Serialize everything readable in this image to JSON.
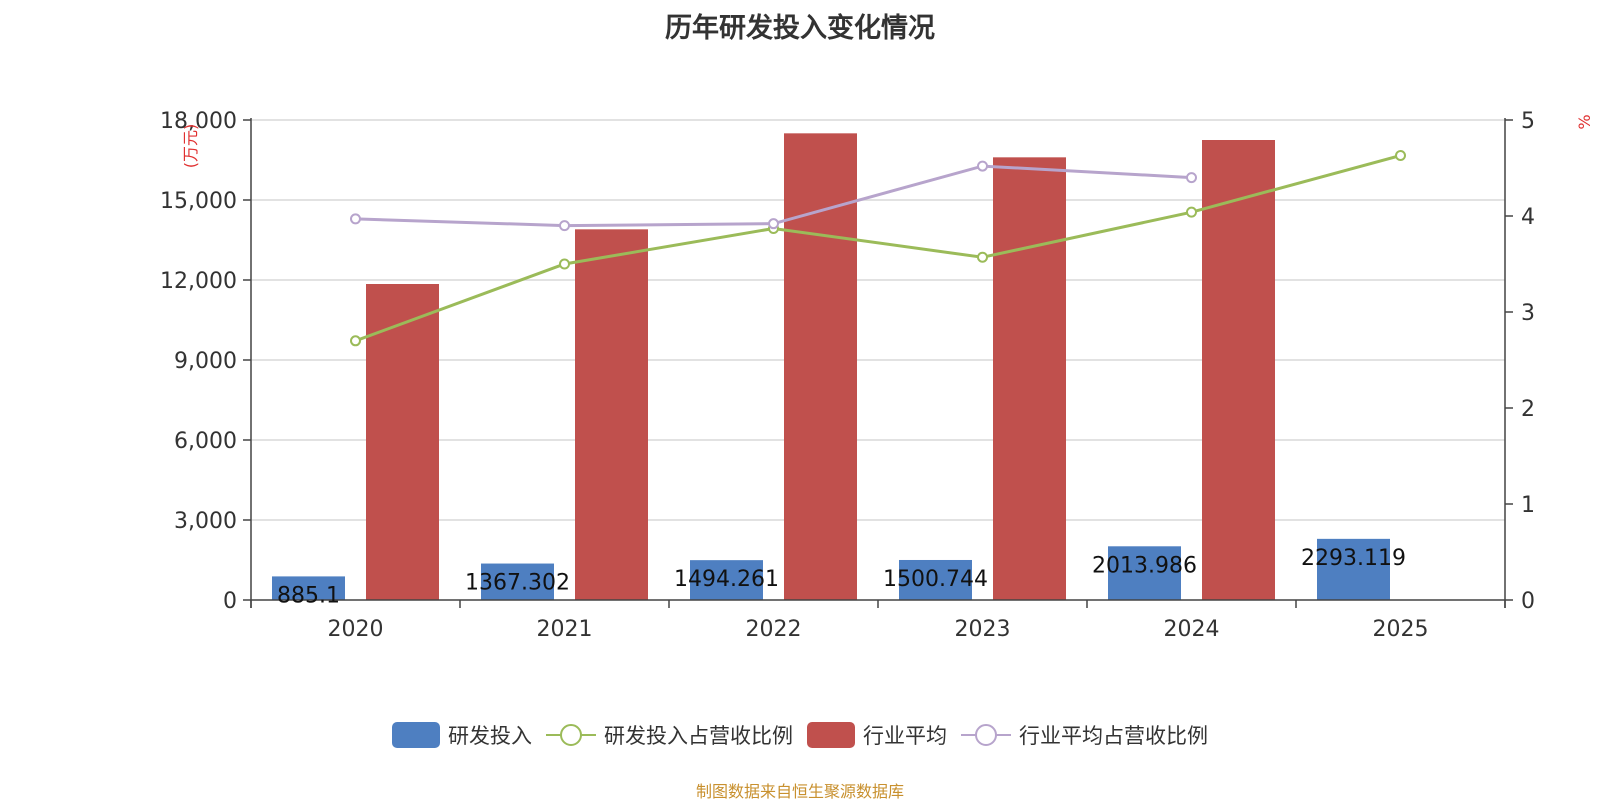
{
  "title": "历年研发投入变化情况",
  "footer": "制图数据来自恒生聚源数据库",
  "chart_data": {
    "type": "bar",
    "categories": [
      "2020",
      "2021",
      "2022",
      "2023",
      "2024",
      "2025"
    ],
    "y_left": {
      "label": "(万元)",
      "min": 0,
      "max": 18000,
      "ticks": [
        "0",
        "3,000",
        "6,000",
        "9,000",
        "12,000",
        "15,000",
        "18,000"
      ]
    },
    "y_right": {
      "label": "%",
      "min": 0,
      "max": 5,
      "ticks": [
        "0",
        "1",
        "2",
        "3",
        "4",
        "5"
      ]
    },
    "grid": true,
    "legend_position": "bottom",
    "series": [
      {
        "name": "研发投入",
        "type": "bar",
        "axis": "left",
        "color": "#4e7fc1",
        "values": [
          885.1,
          1367.302,
          1494.261,
          1500.744,
          2013.986,
          2293.119
        ],
        "labels": [
          "885.1",
          "1367.302",
          "1494.261",
          "1500.744",
          "2013.986",
          "2293.119"
        ]
      },
      {
        "name": "研发投入占营收比例",
        "type": "line",
        "axis": "right",
        "color": "#9bbb59",
        "values": [
          2.7,
          3.5,
          3.87,
          3.57,
          4.04,
          4.63
        ]
      },
      {
        "name": "行业平均",
        "type": "bar",
        "axis": "left",
        "color": "#c0504d",
        "values": [
          11850,
          13900,
          17500,
          16600,
          17250,
          null
        ]
      },
      {
        "name": "行业平均占营收比例",
        "type": "line",
        "axis": "right",
        "color": "#b7a4cc",
        "values": [
          3.97,
          3.9,
          3.92,
          4.52,
          4.4,
          null
        ]
      }
    ]
  }
}
